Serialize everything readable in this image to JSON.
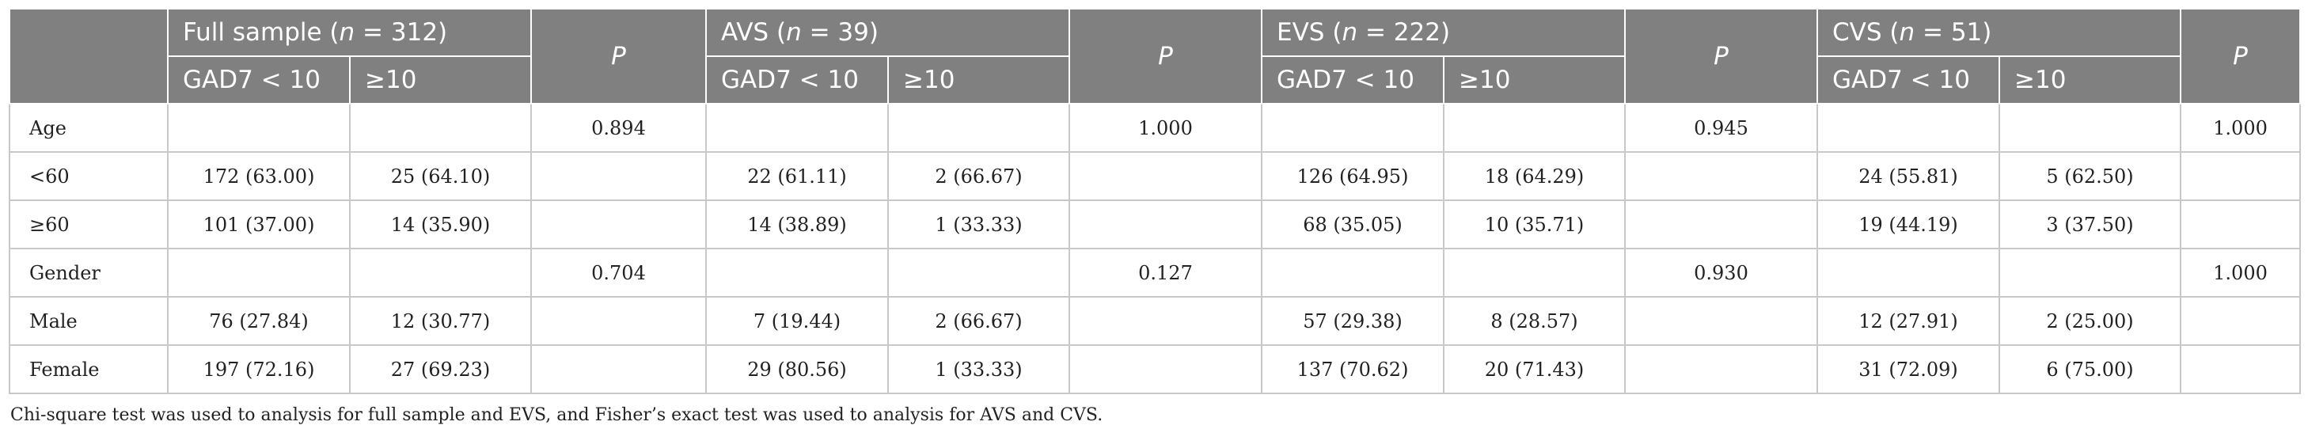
{
  "header": {
    "groups": [
      {
        "name": "Full sample",
        "n_prefix": "n",
        "n_value": " = 312"
      },
      {
        "name": "AVS",
        "n_prefix": "n",
        "n_value": " = 39"
      },
      {
        "name": "EVS",
        "n_prefix": "n",
        "n_value": " = 222"
      },
      {
        "name": "CVS",
        "n_prefix": "n",
        "n_value": " = 51"
      }
    ],
    "p_label": "P",
    "sub_low": "GAD7 < 10",
    "sub_high": "≥10"
  },
  "rows": [
    {
      "label": "Age",
      "cells": [
        "",
        "",
        "0.894",
        "",
        "",
        "1.000",
        "",
        "",
        "0.945",
        "",
        "",
        "1.000"
      ]
    },
    {
      "label": "<60",
      "cells": [
        "172 (63.00)",
        "25 (64.10)",
        "",
        "22 (61.11)",
        "2 (66.67)",
        "",
        "126 (64.95)",
        "18 (64.29)",
        "",
        "24 (55.81)",
        "5 (62.50)",
        ""
      ]
    },
    {
      "label": "≥60",
      "cells": [
        "101 (37.00)",
        "14 (35.90)",
        "",
        "14 (38.89)",
        "1 (33.33)",
        "",
        "68 (35.05)",
        "10 (35.71)",
        "",
        "19 (44.19)",
        "3 (37.50)",
        ""
      ]
    },
    {
      "label": "Gender",
      "cells": [
        "",
        "",
        "0.704",
        "",
        "",
        "0.127",
        "",
        "",
        "0.930",
        "",
        "",
        "1.000"
      ]
    },
    {
      "label": "Male",
      "cells": [
        "76 (27.84)",
        "12 (30.77)",
        "",
        "7 (19.44)",
        "2 (66.67)",
        "",
        "57 (29.38)",
        "8 (28.57)",
        "",
        "12 (27.91)",
        "2 (25.00)",
        ""
      ]
    },
    {
      "label": "Female",
      "cells": [
        "197 (72.16)",
        "27 (69.23)",
        "",
        "29 (80.56)",
        "1 (33.33)",
        "",
        "137 (70.62)",
        "20 (71.43)",
        "",
        "31 (72.09)",
        "6 (75.00)",
        ""
      ]
    }
  ],
  "footnote": "Chi-square test was used to analysis for full sample and EVS, and Fisher’s exact test was used to analysis for AVS and CVS."
}
